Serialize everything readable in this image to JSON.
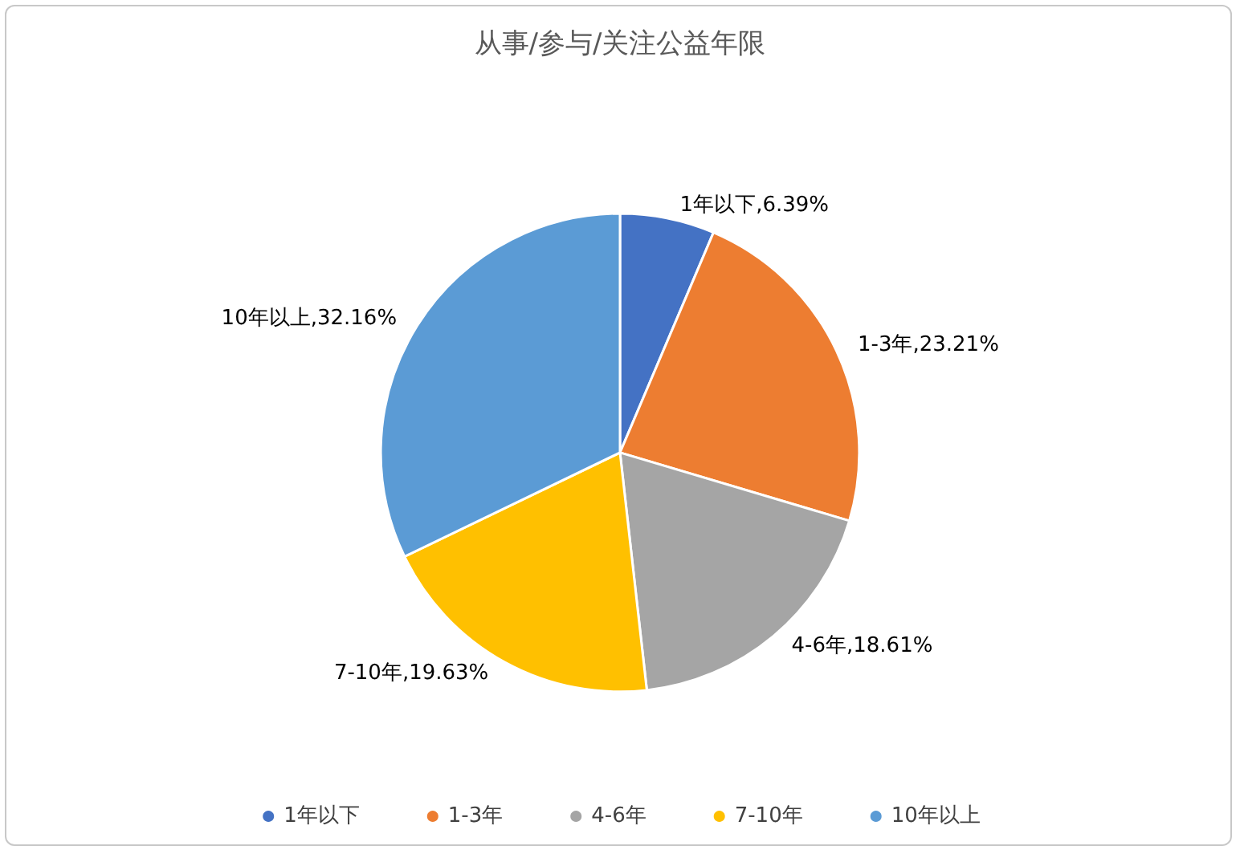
{
  "chart_data": {
    "type": "pie",
    "title": "从事/参与/关注公益年限",
    "categories": [
      "1年以下",
      "1-3年",
      "4-6年",
      "7-10年",
      "10年以上"
    ],
    "values": [
      6.39,
      23.21,
      18.61,
      19.63,
      32.16
    ],
    "colors": [
      "#4472c4",
      "#ed7d31",
      "#a5a5a5",
      "#ffc000",
      "#5b9bd5"
    ],
    "value_labels": [
      "1年以下,6.39%",
      "1-3年,23.21%",
      "4-6年,18.61%",
      "7-10年,19.63%",
      "10年以上,32.16%"
    ],
    "legend": "bottom"
  }
}
